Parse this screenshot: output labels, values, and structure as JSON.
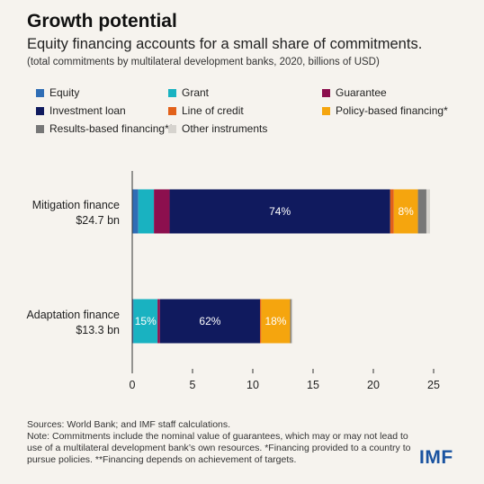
{
  "header": {
    "title": "Growth potential",
    "subtitle": "Equity financing accounts for a small share of commitments.",
    "note": "(total commitments by multilateral development banks, 2020, billions of USD)"
  },
  "footer": {
    "sources": "Sources: World Bank; and IMF staff calculations.",
    "note": "Note: Commitments include the nominal value of guarantees, which may or may not lead to use of a multilateral development bank’s own resources. *Financing provided to a country to pursue policies. **Financing depends on achievement of targets.",
    "logo": "IMF"
  },
  "chart_data": {
    "type": "bar",
    "orientation": "horizontal",
    "stacked": true,
    "categories": [
      "Mitigation finance\n$24.7 bn",
      "Adaptation finance\n$13.3 bn"
    ],
    "series": [
      {
        "name": "Equity",
        "color": "#2f6db5",
        "values": [
          0.5,
          0.1
        ]
      },
      {
        "name": "Grant",
        "color": "#19b2c1",
        "values": [
          1.3,
          2.0
        ]
      },
      {
        "name": "Guarantee",
        "color": "#8c0f4e",
        "values": [
          1.3,
          0.2
        ]
      },
      {
        "name": "Investment loan",
        "color": "#101a5e",
        "values": [
          18.3,
          8.3
        ]
      },
      {
        "name": "Line of credit",
        "color": "#e2611a",
        "values": [
          0.3,
          0.1
        ]
      },
      {
        "name": "Policy-based financing*",
        "color": "#f5a50e",
        "values": [
          2.0,
          2.4
        ]
      },
      {
        "name": "Results-based financing**",
        "color": "#777777",
        "values": [
          0.7,
          0.1
        ]
      },
      {
        "name": "Other instruments",
        "color": "#d6d3ce",
        "values": [
          0.3,
          0.1
        ]
      }
    ],
    "data_labels": [
      {
        "category": 0,
        "series": 3,
        "text": "74%"
      },
      {
        "category": 0,
        "series": 5,
        "text": "8%"
      },
      {
        "category": 1,
        "series": 1,
        "text": "15%"
      },
      {
        "category": 1,
        "series": 3,
        "text": "62%"
      },
      {
        "category": 1,
        "series": 5,
        "text": "18%"
      }
    ],
    "xlim": [
      0,
      25
    ],
    "xticks": [
      0,
      5,
      10,
      15,
      20,
      25
    ],
    "grid": false,
    "legend_position": "top"
  }
}
